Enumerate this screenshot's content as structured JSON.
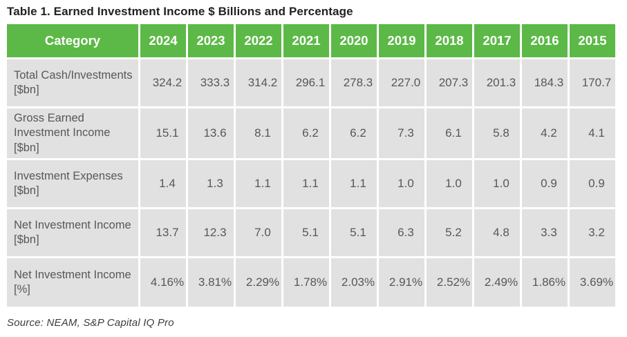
{
  "title": "Table 1. Earned Investment Income $ Billions and Percentage",
  "source": "Source: NEAM, S&P Capital IQ Pro",
  "colors": {
    "header_bg": "#5cb947",
    "header_text": "#ffffff",
    "row_bg": "#e1e1e1",
    "cell_text": "#56575b",
    "title_text": "#212121"
  },
  "chart_data": {
    "type": "table",
    "title": "Table 1. Earned Investment Income $ Billions and Percentage",
    "columns": [
      "Category",
      "2024",
      "2023",
      "2022",
      "2021",
      "2020",
      "2019",
      "2018",
      "2017",
      "2016",
      "2015"
    ],
    "rows": [
      {
        "label": "Total Cash/Investments [$bn]",
        "values": [
          "324.2",
          "333.3",
          "314.2",
          "296.1",
          "278.3",
          "227.0",
          "207.3",
          "201.3",
          "184.3",
          "170.7"
        ]
      },
      {
        "label": "Gross Earned Investment Income [$bn]",
        "values": [
          "15.1",
          "13.6",
          "8.1",
          "6.2",
          "6.2",
          "7.3",
          "6.1",
          "5.8",
          "4.2",
          "4.1"
        ]
      },
      {
        "label": "Investment Expenses [$bn]",
        "values": [
          "1.4",
          "1.3",
          "1.1",
          "1.1",
          "1.1",
          "1.0",
          "1.0",
          "1.0",
          "0.9",
          "0.9"
        ]
      },
      {
        "label": "Net Investment Income [$bn]",
        "values": [
          "13.7",
          "12.3",
          "7.0",
          "5.1",
          "5.1",
          "6.3",
          "5.2",
          "4.8",
          "3.3",
          "3.2"
        ]
      },
      {
        "label": "Net Investment Income [%]",
        "values": [
          "4.16%",
          "3.81%",
          "2.29%",
          "1.78%",
          "2.03%",
          "2.91%",
          "2.52%",
          "2.49%",
          "1.86%",
          "3.69%"
        ]
      }
    ],
    "source": "Source: NEAM, S&P Capital IQ Pro",
    "layout": {
      "grid": "white 3px gaps between cells",
      "legend": "none"
    }
  }
}
